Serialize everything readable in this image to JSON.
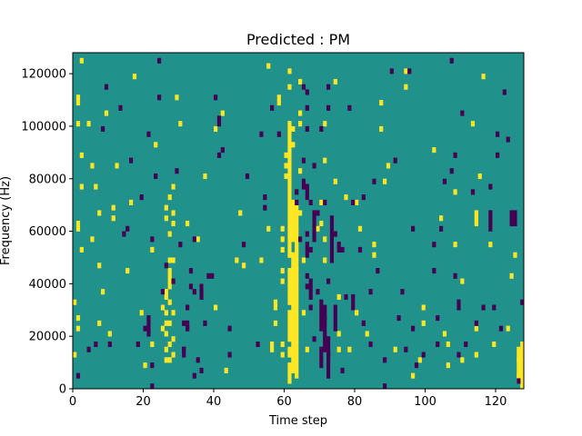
{
  "chart_data": {
    "type": "heatmap",
    "title": "Predicted : PM",
    "xlabel": "Time step",
    "ylabel": "Frequency (Hz)",
    "xlim": [
      0,
      128
    ],
    "ylim": [
      0,
      128000
    ],
    "x_ticks": [
      0,
      20,
      40,
      60,
      80,
      100,
      120
    ],
    "y_ticks": [
      0,
      20000,
      40000,
      60000,
      80000,
      100000,
      120000
    ],
    "x_tick_labels": [
      "0",
      "20",
      "40",
      "60",
      "80",
      "100",
      "120"
    ],
    "y_tick_labels": [
      "0",
      "20000",
      "40000",
      "60000",
      "80000",
      "100000",
      "120000"
    ],
    "cell_height_hz": 2000,
    "grid": false,
    "colors": {
      "background": "#21918c",
      "positive": "#fde725",
      "negative": "#440154"
    },
    "positive_cells": [
      [
        0,
        12000
      ],
      [
        0,
        32000
      ],
      [
        1,
        22000
      ],
      [
        1,
        26000
      ],
      [
        1,
        60000
      ],
      [
        1,
        62000
      ],
      [
        1,
        100000
      ],
      [
        1,
        108000
      ],
      [
        1,
        110000
      ],
      [
        2,
        52000
      ],
      [
        2,
        76000
      ],
      [
        2,
        88000
      ],
      [
        2,
        124000
      ],
      [
        4,
        100000
      ],
      [
        5,
        56000
      ],
      [
        5,
        84000
      ],
      [
        6,
        76000
      ],
      [
        7,
        24000
      ],
      [
        7,
        46000
      ],
      [
        7,
        66000
      ],
      [
        8,
        36000
      ],
      [
        9,
        104000
      ],
      [
        10,
        20000
      ],
      [
        11,
        64000
      ],
      [
        11,
        68000
      ],
      [
        12,
        84000
      ],
      [
        15,
        44000
      ],
      [
        16,
        70000
      ],
      [
        17,
        118000
      ],
      [
        19,
        28000
      ],
      [
        20,
        8000
      ],
      [
        22,
        16000
      ],
      [
        22,
        52000
      ],
      [
        23,
        92000
      ],
      [
        25,
        22000
      ],
      [
        25,
        30000
      ],
      [
        26,
        10000
      ],
      [
        26,
        14000
      ],
      [
        26,
        20000
      ],
      [
        26,
        24000
      ],
      [
        26,
        28000
      ],
      [
        26,
        34000
      ],
      [
        26,
        36000
      ],
      [
        26,
        64000
      ],
      [
        26,
        68000
      ],
      [
        27,
        10000
      ],
      [
        27,
        16000
      ],
      [
        27,
        24000
      ],
      [
        27,
        32000
      ],
      [
        27,
        38000
      ],
      [
        27,
        40000
      ],
      [
        27,
        42000
      ],
      [
        27,
        44000
      ],
      [
        27,
        48000
      ],
      [
        27,
        58000
      ],
      [
        27,
        72000
      ],
      [
        28,
        12000
      ],
      [
        28,
        18000
      ],
      [
        28,
        28000
      ],
      [
        28,
        48000
      ],
      [
        28,
        62000
      ],
      [
        28,
        66000
      ],
      [
        28,
        76000
      ],
      [
        29,
        110000
      ],
      [
        30,
        100000
      ],
      [
        32,
        62000
      ],
      [
        35,
        56000
      ],
      [
        36,
        38000
      ],
      [
        37,
        80000
      ],
      [
        40,
        30000
      ],
      [
        40,
        98000
      ],
      [
        42,
        104000
      ],
      [
        43,
        6000
      ],
      [
        47,
        66000
      ],
      [
        46,
        48000
      ],
      [
        48,
        46000
      ],
      [
        53,
        48000
      ],
      [
        55,
        122000
      ],
      [
        55,
        60000
      ],
      [
        57,
        32000
      ],
      [
        57,
        30000
      ],
      [
        57,
        24000
      ],
      [
        56,
        16000
      ],
      [
        56,
        14000
      ],
      [
        58,
        110000
      ],
      [
        58,
        108000
      ],
      [
        59,
        40000
      ],
      [
        59,
        44000
      ],
      [
        59,
        52000
      ],
      [
        59,
        56000
      ],
      [
        59,
        60000
      ],
      [
        59,
        12000
      ],
      [
        59,
        16000
      ],
      [
        60,
        88000
      ],
      [
        60,
        84000
      ],
      [
        60,
        80000
      ],
      [
        61,
        114000
      ],
      [
        61,
        120000
      ],
      [
        62,
        92000
      ],
      [
        62,
        98000
      ],
      [
        64,
        66000
      ],
      [
        64,
        82000
      ],
      [
        64,
        100000
      ],
      [
        64,
        104000
      ],
      [
        64,
        116000
      ],
      [
        65,
        28000
      ],
      [
        65,
        48000
      ],
      [
        66,
        14000
      ],
      [
        69,
        60000
      ],
      [
        70,
        62000
      ],
      [
        70,
        70000
      ],
      [
        71,
        100000
      ],
      [
        71,
        48000
      ],
      [
        71,
        56000
      ],
      [
        71,
        86000
      ],
      [
        74,
        78000
      ],
      [
        74,
        116000
      ],
      [
        75,
        14000
      ],
      [
        75,
        20000
      ],
      [
        75,
        34000
      ],
      [
        77,
        72000
      ],
      [
        78,
        14000
      ],
      [
        80,
        28000
      ],
      [
        80,
        70000
      ],
      [
        81,
        60000
      ],
      [
        83,
        20000
      ],
      [
        85,
        50000
      ],
      [
        85,
        54000
      ],
      [
        87,
        98000
      ],
      [
        87,
        108000
      ],
      [
        88,
        78000
      ],
      [
        89,
        84000
      ],
      [
        91,
        14000
      ],
      [
        94,
        120000
      ],
      [
        94,
        114000
      ],
      [
        96,
        4000
      ],
      [
        98,
        10000
      ],
      [
        99,
        24000
      ],
      [
        99,
        30000
      ],
      [
        102,
        90000
      ],
      [
        104,
        64000
      ],
      [
        105,
        20000
      ],
      [
        106,
        16000
      ],
      [
        106,
        8000
      ],
      [
        108,
        54000
      ],
      [
        108,
        74000
      ],
      [
        110,
        10000
      ],
      [
        110,
        40000
      ],
      [
        113,
        100000
      ],
      [
        114,
        12000
      ],
      [
        114,
        22000
      ],
      [
        115,
        80000
      ],
      [
        116,
        118000
      ],
      [
        118,
        54000
      ],
      [
        119,
        16000
      ],
      [
        123,
        22000
      ],
      [
        124,
        42000
      ],
      [
        125,
        50000
      ],
      [
        126,
        10000
      ],
      [
        126,
        14000
      ],
      [
        126,
        4000
      ],
      [
        127,
        12000
      ],
      [
        127,
        14000
      ],
      [
        127,
        10000
      ]
    ],
    "positive_runs": [
      [
        61,
        2000,
        8000
      ],
      [
        61,
        12000,
        14000
      ],
      [
        61,
        18000,
        28000
      ],
      [
        61,
        32000,
        44000
      ],
      [
        61,
        50000,
        70000
      ],
      [
        61,
        72000,
        100000
      ],
      [
        62,
        6000,
        50000
      ],
      [
        62,
        56000,
        70000
      ],
      [
        63,
        4000,
        68000
      ],
      [
        114,
        62000,
        66000
      ],
      [
        126,
        2000,
        12000
      ],
      [
        127,
        0,
        16000
      ]
    ],
    "negative_cells": [
      [
        1,
        4000
      ],
      [
        4,
        14000
      ],
      [
        6,
        16000
      ],
      [
        8,
        98000
      ],
      [
        9,
        114000
      ],
      [
        10,
        16000
      ],
      [
        13,
        106000
      ],
      [
        14,
        58000
      ],
      [
        15,
        60000
      ],
      [
        16,
        86000
      ],
      [
        18,
        16000
      ],
      [
        19,
        72000
      ],
      [
        20,
        22000
      ],
      [
        21,
        96000
      ],
      [
        22,
        0
      ],
      [
        22,
        8000
      ],
      [
        22,
        56000
      ],
      [
        23,
        80000
      ],
      [
        24,
        110000
      ],
      [
        24,
        124000
      ],
      [
        25,
        36000
      ],
      [
        26,
        46000
      ],
      [
        28,
        40000
      ],
      [
        29,
        82000
      ],
      [
        30,
        54000
      ],
      [
        31,
        14000
      ],
      [
        31,
        24000
      ],
      [
        32,
        22000
      ],
      [
        32,
        30000
      ],
      [
        33,
        38000
      ],
      [
        33,
        44000
      ],
      [
        34,
        4000
      ],
      [
        34,
        36000
      ],
      [
        34,
        56000
      ],
      [
        35,
        10000
      ],
      [
        36,
        6000
      ],
      [
        37,
        24000
      ],
      [
        38,
        42000
      ],
      [
        39,
        42000
      ],
      [
        40,
        110000
      ],
      [
        41,
        100000
      ],
      [
        41,
        102000
      ],
      [
        41,
        88000
      ],
      [
        42,
        90000
      ],
      [
        44,
        12000
      ],
      [
        44,
        22000
      ],
      [
        48,
        54000
      ],
      [
        49,
        80000
      ],
      [
        52,
        16000
      ],
      [
        53,
        96000
      ],
      [
        54,
        68000
      ],
      [
        54,
        72000
      ],
      [
        56,
        106000
      ],
      [
        58,
        96000
      ],
      [
        63,
        74000
      ],
      [
        63,
        70000
      ],
      [
        64,
        56000
      ],
      [
        65,
        76000
      ],
      [
        65,
        78000
      ],
      [
        65,
        86000
      ],
      [
        65,
        114000
      ],
      [
        66,
        98000
      ],
      [
        66,
        106000
      ],
      [
        66,
        112000
      ],
      [
        66,
        58000
      ],
      [
        66,
        42000
      ],
      [
        66,
        38000
      ],
      [
        67,
        70000
      ],
      [
        67,
        52000
      ],
      [
        67,
        30000
      ],
      [
        68,
        18000
      ],
      [
        68,
        84000
      ],
      [
        69,
        66000
      ],
      [
        69,
        36000
      ],
      [
        70,
        98000
      ],
      [
        71,
        26000
      ],
      [
        71,
        70000
      ],
      [
        72,
        114000
      ],
      [
        72,
        106000
      ],
      [
        72,
        40000
      ],
      [
        72,
        12000
      ],
      [
        73,
        64000
      ],
      [
        74,
        58000
      ],
      [
        76,
        6000
      ],
      [
        76,
        52000
      ],
      [
        77,
        34000
      ],
      [
        78,
        106000
      ],
      [
        79,
        70000
      ],
      [
        81,
        52000
      ],
      [
        82,
        72000
      ],
      [
        82,
        24000
      ],
      [
        84,
        16000
      ],
      [
        84,
        36000
      ],
      [
        85,
        78000
      ],
      [
        86,
        44000
      ],
      [
        88,
        10000
      ],
      [
        88,
        0
      ],
      [
        90,
        120000
      ],
      [
        91,
        86000
      ],
      [
        92,
        26000
      ],
      [
        93,
        36000
      ],
      [
        94,
        14000
      ],
      [
        95,
        120000
      ],
      [
        96,
        60000
      ],
      [
        96,
        22000
      ],
      [
        97,
        8000
      ],
      [
        99,
        12000
      ],
      [
        102,
        54000
      ],
      [
        102,
        44000
      ],
      [
        103,
        26000
      ],
      [
        103,
        16000
      ],
      [
        104,
        60000
      ],
      [
        105,
        78000
      ],
      [
        107,
        82000
      ],
      [
        107,
        124000
      ],
      [
        108,
        88000
      ],
      [
        108,
        42000
      ],
      [
        109,
        12000
      ],
      [
        110,
        104000
      ],
      [
        111,
        16000
      ],
      [
        113,
        74000
      ],
      [
        114,
        24000
      ],
      [
        116,
        30000
      ],
      [
        118,
        76000
      ],
      [
        119,
        30000
      ],
      [
        120,
        88000
      ],
      [
        120,
        96000
      ],
      [
        121,
        22000
      ],
      [
        122,
        112000
      ],
      [
        123,
        94000
      ],
      [
        126,
        2000
      ],
      [
        127,
        32000
      ]
    ],
    "negative_runs": [
      [
        21,
        20000,
        26000
      ],
      [
        31,
        12000,
        14000
      ],
      [
        32,
        22000,
        24000
      ],
      [
        36,
        34000,
        38000
      ],
      [
        66,
        50000,
        54000
      ],
      [
        66,
        72000,
        76000
      ],
      [
        67,
        34000,
        40000
      ],
      [
        68,
        56000,
        66000
      ],
      [
        70,
        8000,
        14000
      ],
      [
        70,
        22000,
        32000
      ],
      [
        71,
        14000,
        30000
      ],
      [
        72,
        4000,
        18000
      ],
      [
        73,
        48000,
        62000
      ],
      [
        74,
        22000,
        30000
      ],
      [
        75,
        52000,
        54000
      ],
      [
        79,
        30000,
        34000
      ],
      [
        109,
        30000,
        32000
      ],
      [
        118,
        60000,
        66000
      ],
      [
        124,
        62000,
        66000
      ],
      [
        125,
        62000,
        66000
      ]
    ]
  }
}
